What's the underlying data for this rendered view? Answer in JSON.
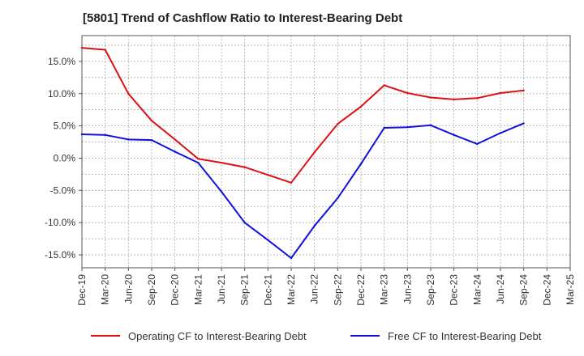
{
  "chart_data": {
    "type": "line",
    "title": "[5801]  Trend of Cashflow Ratio to Interest-Bearing Debt",
    "xlabel": "",
    "ylabel": "",
    "x": [
      "Dec-19",
      "Mar-20",
      "Jun-20",
      "Sep-20",
      "Dec-20",
      "Mar-21",
      "Jun-21",
      "Sep-21",
      "Dec-21",
      "Mar-22",
      "Jun-22",
      "Sep-22",
      "Dec-22",
      "Mar-23",
      "Jun-23",
      "Sep-23",
      "Dec-23",
      "Mar-24",
      "Jun-24",
      "Sep-24",
      "Dec-24",
      "Mar-25"
    ],
    "ylim": [
      -17,
      19
    ],
    "yticks": [
      15,
      10,
      5,
      0,
      -5,
      -10,
      -15
    ],
    "ytick_labels": [
      "15.0%",
      "10.0%",
      "5.0%",
      "0.0%",
      "-5.0%",
      "-10.0%",
      "-15.0%"
    ],
    "grid": true,
    "legend_position": "bottom",
    "series": [
      {
        "name": "Operating CF to Interest-Bearing Debt",
        "color": "#dd1111",
        "values": [
          17.1,
          16.8,
          10.0,
          5.8,
          2.9,
          -0.1,
          -0.7,
          -1.4,
          -2.6,
          -3.8,
          0.9,
          5.3,
          8.0,
          11.3,
          10.1,
          9.4,
          9.1,
          9.3,
          10.1,
          10.5,
          null,
          null
        ]
      },
      {
        "name": "Free CF to Interest-Bearing Debt",
        "color": "#1111dd",
        "values": [
          3.7,
          3.6,
          2.9,
          2.8,
          1.0,
          -0.7,
          -5.2,
          -10.0,
          -12.7,
          -15.5,
          -10.5,
          -6.2,
          -0.9,
          4.7,
          4.8,
          5.1,
          3.6,
          2.2,
          3.9,
          5.4,
          null,
          null
        ]
      }
    ]
  }
}
